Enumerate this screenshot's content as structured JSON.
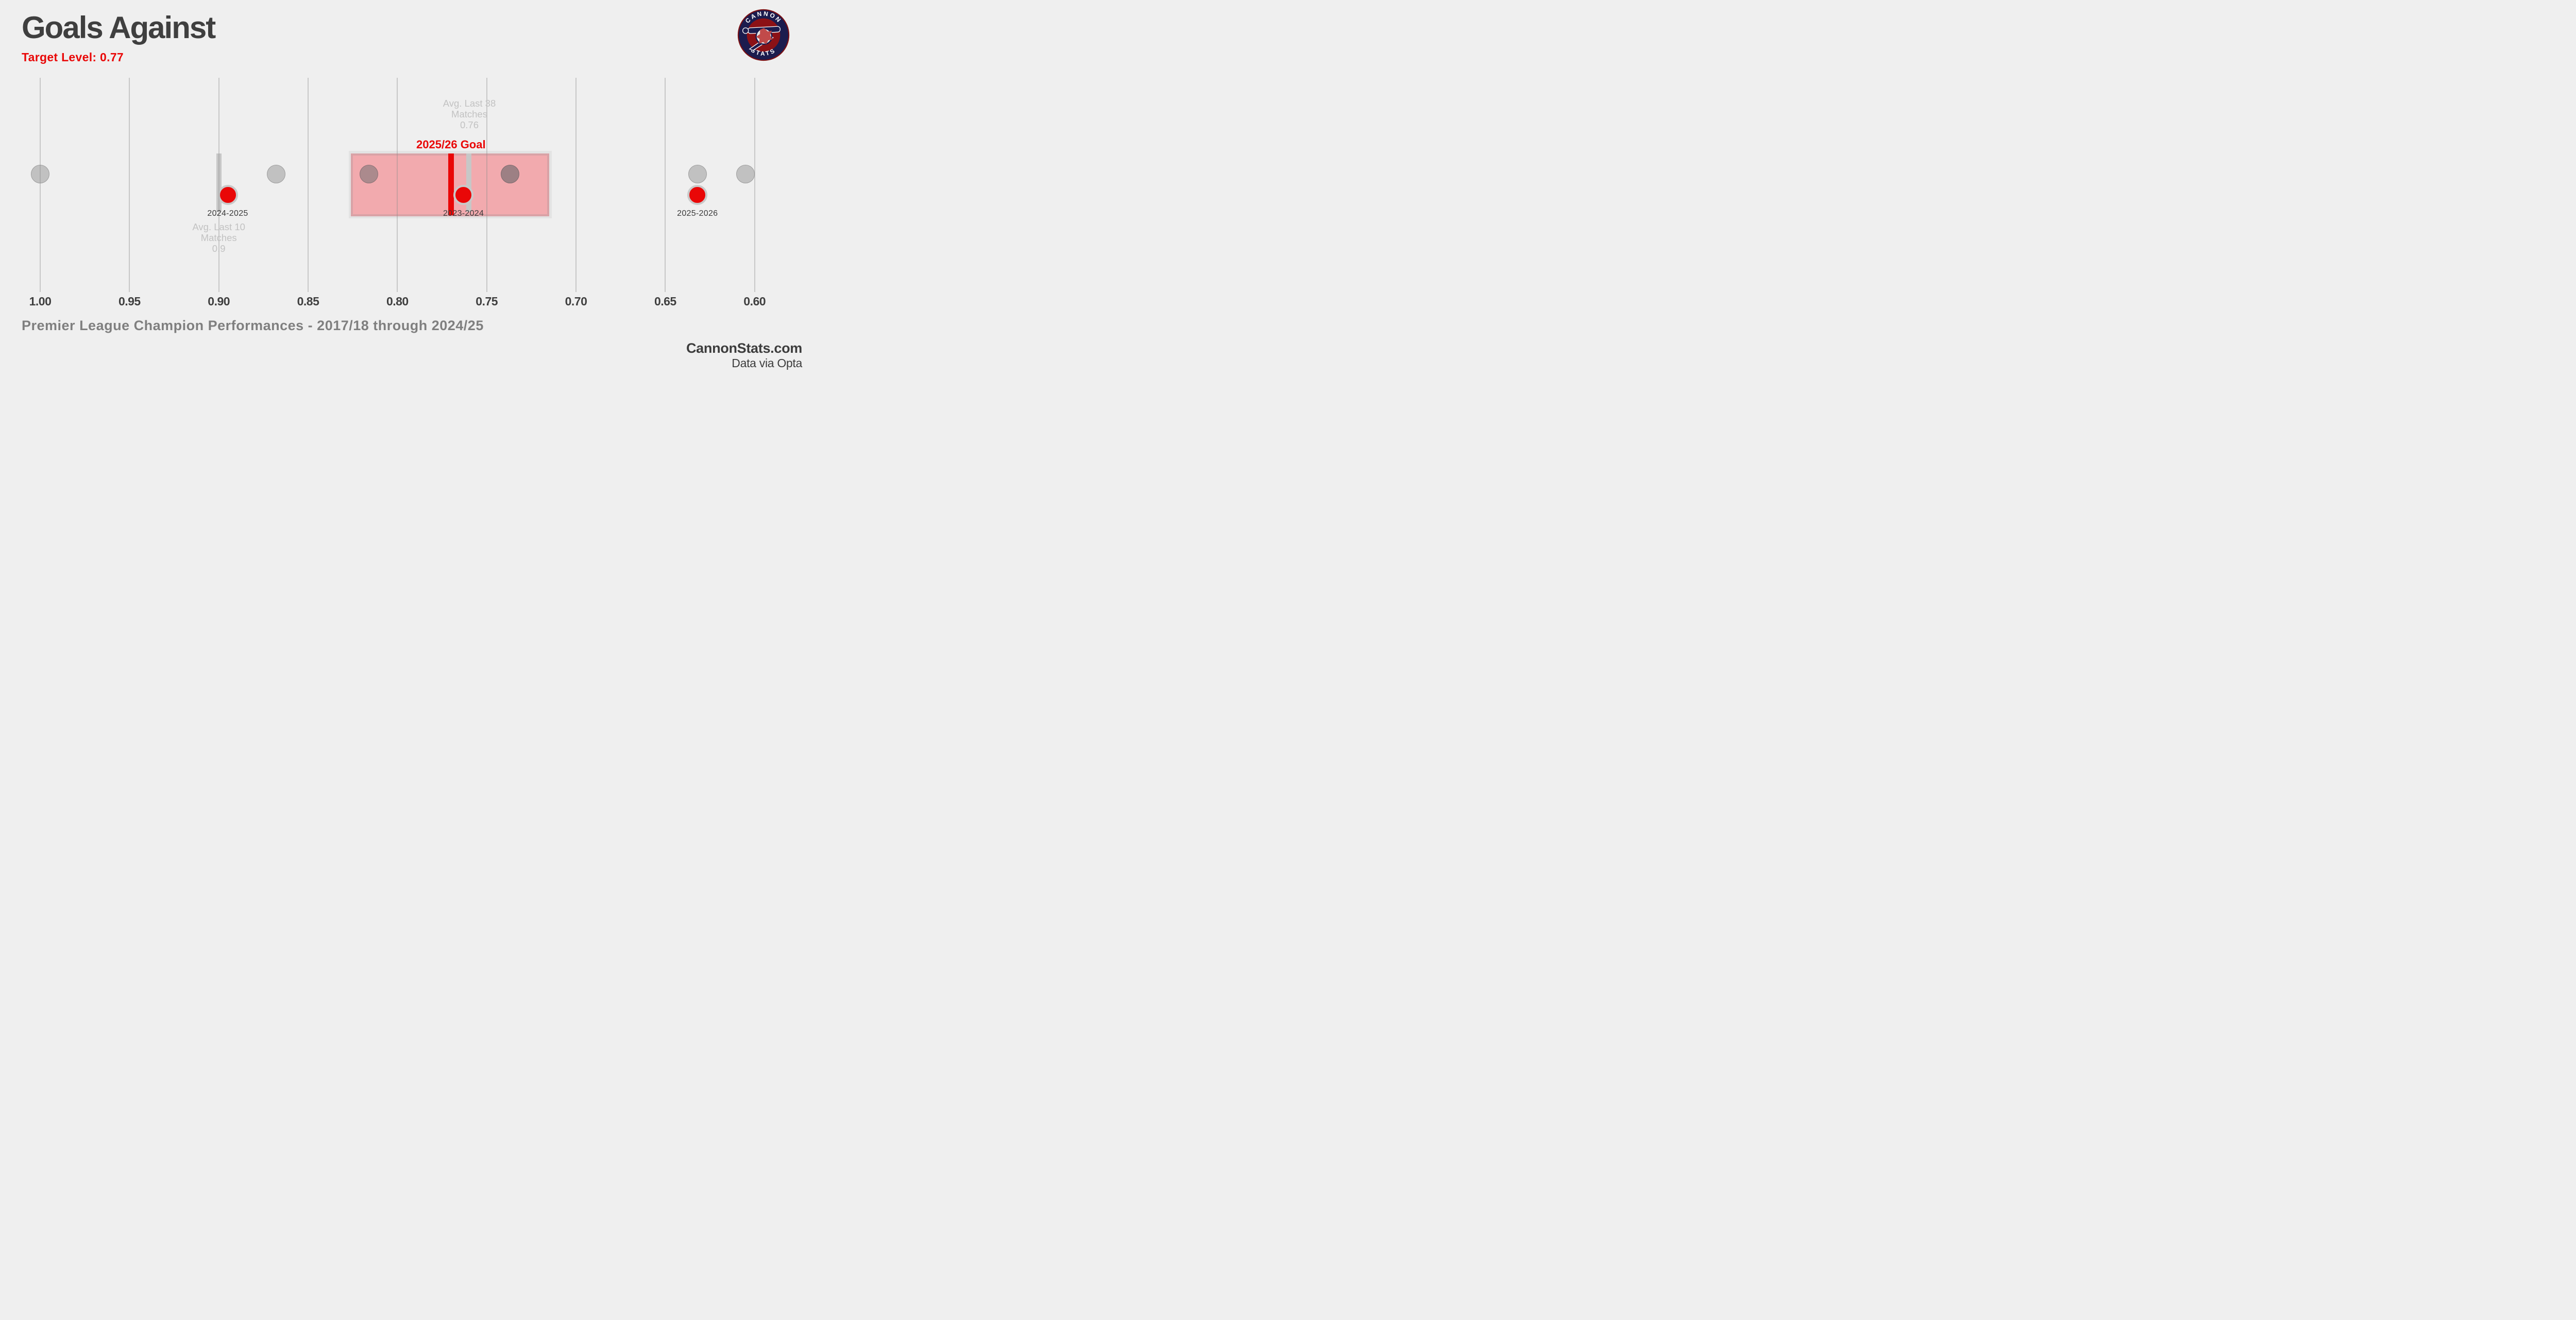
{
  "header": {
    "title": "Goals Against",
    "subtitle": "Target Level: 0.77"
  },
  "logo": {
    "top_text": "CANNON",
    "bottom_text": "STATS"
  },
  "chart_data": {
    "type": "scatter",
    "title": "Goals Against",
    "target_level": 0.77,
    "goal_label": "2025/26 Goal",
    "x_axis": {
      "direction": "reversed",
      "min": 0.6,
      "max": 1.0,
      "grid": true,
      "ticks": [
        "1.00",
        "0.95",
        "0.90",
        "0.85",
        "0.80",
        "0.75",
        "0.70",
        "0.65",
        "0.60"
      ]
    },
    "goal_band": {
      "from": 0.826,
      "to": 0.715
    },
    "avg_last_38": {
      "value": 0.76,
      "lines": [
        "Avg. Last 38",
        "Matches",
        "0.76"
      ]
    },
    "avg_last_10": {
      "value": 0.9,
      "lines": [
        "Avg. Last 10",
        "Matches",
        "0.9"
      ]
    },
    "series": [
      {
        "name": "champions",
        "color": "#c1c1c1",
        "points": [
          {
            "value": 1.0
          },
          {
            "value": 0.868
          },
          {
            "value": 0.816,
            "in_band": "mauve"
          },
          {
            "value": 0.737,
            "in_band": "mauve2"
          },
          {
            "value": 0.632
          },
          {
            "value": 0.605
          }
        ]
      },
      {
        "name": "arsenal",
        "color": "#e90707",
        "points": [
          {
            "label": "2024-2025",
            "value": 0.895
          },
          {
            "label": "2023-2024",
            "value": 0.763
          },
          {
            "label": "2025-2026",
            "value": 0.632
          }
        ]
      }
    ]
  },
  "footer": {
    "caption": "Premier League Champion Performances - 2017/18 through 2024/25",
    "site": "CannonStats.com",
    "source": "Data via Opta"
  },
  "colors": {
    "accent_red": "#e90707",
    "band_pink": "#f2aaae",
    "band_border": "#d9a2a6",
    "band_shadow": "#e3e3e3",
    "gray_dot": "#c1c1c1",
    "avg_line": "#c7c7c7",
    "text_dark": "#3f3f3f",
    "text_gray": "#7f7f7f"
  }
}
